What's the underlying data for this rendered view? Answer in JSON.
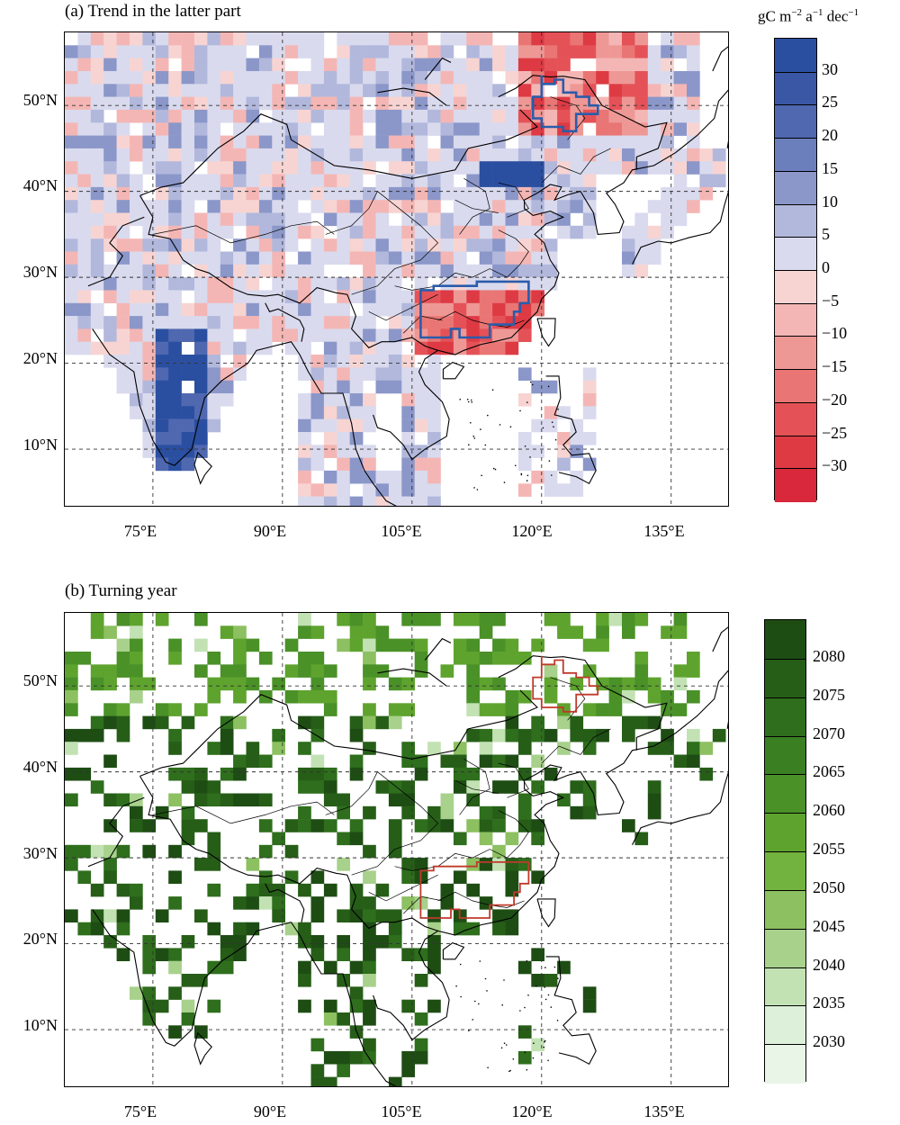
{
  "panels": [
    {
      "title": "(a) Trend in the latter part",
      "colorbar_unit_main": "gC m",
      "colorbar_unit_sup1": "−2",
      "colorbar_unit_mid": " a",
      "colorbar_unit_sup2": "−1",
      "colorbar_unit_end": " dec",
      "colorbar_unit_sup3": "−1",
      "colorbar_labels": [
        "30",
        "25",
        "20",
        "15",
        "10",
        "5",
        "0",
        "−5",
        "−10",
        "−15",
        "−20",
        "−25",
        "−30"
      ],
      "colorbar_colors": [
        "#2b4fa0",
        "#3a57a6",
        "#4f68b0",
        "#6a7fbc",
        "#8b97c9",
        "#b2b8dc",
        "#d9daee",
        "#f7d4d2",
        "#f4b6b4",
        "#ee9896",
        "#e97674",
        "#e45257",
        "#de3a44",
        "#d9273b"
      ],
      "region_outline_color": "#2a5caa"
    },
    {
      "title": "(b) Turning year",
      "colorbar_labels": [
        "2080",
        "2075",
        "2070",
        "2065",
        "2060",
        "2055",
        "2050",
        "2045",
        "2040",
        "2035",
        "2030"
      ],
      "colorbar_colors": [
        "#1e4d14",
        "#265e18",
        "#2e6e1c",
        "#3a7f22",
        "#4a9128",
        "#5ea32e",
        "#72b23e",
        "#8cc061",
        "#a8d18c",
        "#c3e2b4",
        "#ddf0d9",
        "#e9f5e7"
      ],
      "region_outline_color": "#c0392b"
    }
  ],
  "axes": {
    "lat_ticks": [
      "50°N",
      "40°N",
      "30°N",
      "20°N",
      "10°N"
    ],
    "lon_ticks": [
      "75°E",
      "90°E",
      "105°E",
      "120°E",
      "135°E"
    ]
  }
}
